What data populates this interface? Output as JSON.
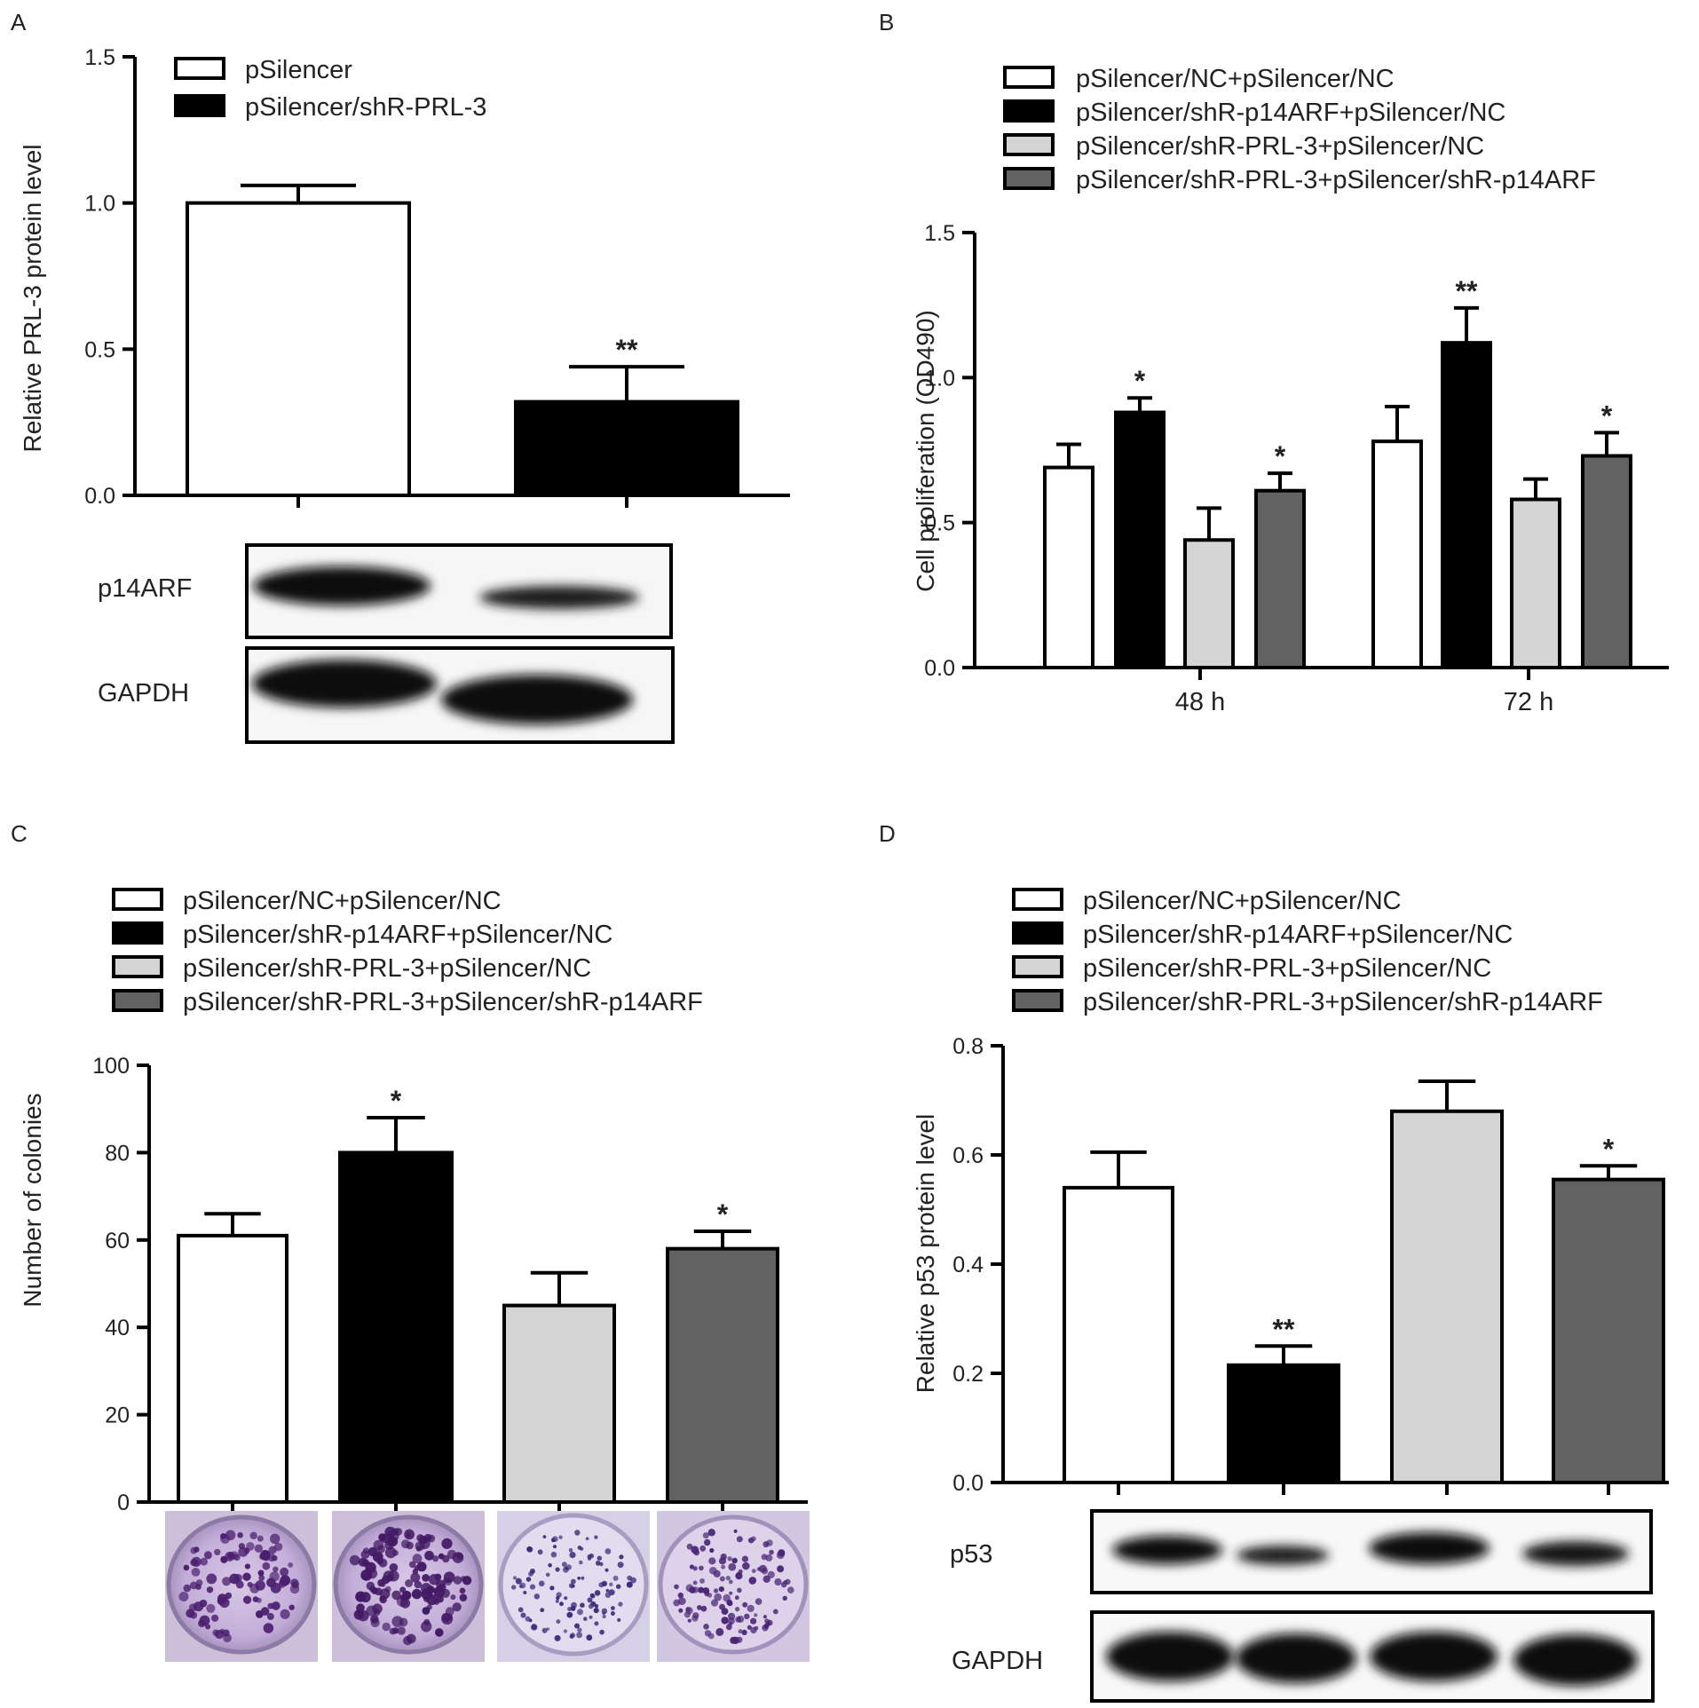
{
  "colors": {
    "white": "#ffffff",
    "black": "#000000",
    "light": "#d4d4d4",
    "dark": "#626262"
  },
  "chart_data": [
    {
      "panel": "A",
      "type": "bar",
      "ylabel": "Relative PRL-3 protein level",
      "ylim": [
        0,
        1.5
      ],
      "yticks": [
        "0.0",
        "0.5",
        "1.0",
        "1.5"
      ],
      "legend": [
        "pSilencer",
        "pSilencer/shR-PRL-3"
      ],
      "series": [
        {
          "name": "pSilencer",
          "values": [
            1.0
          ],
          "errors": [
            0.06
          ],
          "sig": "",
          "color": "#ffffff"
        },
        {
          "name": "pSilencer/shR-PRL-3",
          "values": [
            0.32
          ],
          "errors": [
            0.12
          ],
          "sig": "**",
          "color": "#000000"
        }
      ],
      "blots": [
        "p14ARF",
        "GAPDH"
      ]
    },
    {
      "panel": "B",
      "type": "bar",
      "ylabel": "Cell proliferation (OD490)",
      "ylim": [
        0,
        1.5
      ],
      "yticks": [
        "0.0",
        "0.5",
        "1.0",
        "1.5"
      ],
      "categories": [
        "48 h",
        "72 h"
      ],
      "legend": [
        "pSilencer/NC+pSilencer/NC",
        "pSilencer/shR-p14ARF+pSilencer/NC",
        "pSilencer/shR-PRL-3+pSilencer/NC",
        "pSilencer/shR-PRL-3+pSilencer/shR-p14ARF"
      ],
      "series": [
        {
          "name": "pSilencer/NC+pSilencer/NC",
          "values": [
            0.69,
            0.78
          ],
          "errors": [
            0.08,
            0.12
          ],
          "sig": [
            "",
            ""
          ],
          "color": "#ffffff"
        },
        {
          "name": "pSilencer/shR-p14ARF+pSilencer/NC",
          "values": [
            0.88,
            1.12
          ],
          "errors": [
            0.05,
            0.12
          ],
          "sig": [
            "*",
            "**"
          ],
          "color": "#000000"
        },
        {
          "name": "pSilencer/shR-PRL-3+pSilencer/NC",
          "values": [
            0.44,
            0.58
          ],
          "errors": [
            0.11,
            0.07
          ],
          "sig": [
            "",
            ""
          ],
          "color": "#d4d4d4"
        },
        {
          "name": "pSilencer/shR-PRL-3+pSilencer/shR-p14ARF",
          "values": [
            0.61,
            0.73
          ],
          "errors": [
            0.06,
            0.08
          ],
          "sig": [
            "*",
            "*"
          ],
          "color": "#626262"
        }
      ]
    },
    {
      "panel": "C",
      "type": "bar",
      "ylabel": "Number of colonies",
      "ylim": [
        0,
        100
      ],
      "yticks": [
        "0",
        "20",
        "40",
        "60",
        "80",
        "100"
      ],
      "legend": [
        "pSilencer/NC+pSilencer/NC",
        "pSilencer/shR-p14ARF+pSilencer/NC",
        "pSilencer/shR-PRL-3+pSilencer/NC",
        "pSilencer/shR-PRL-3+pSilencer/shR-p14ARF"
      ],
      "series": [
        {
          "name": "pSilencer/NC+pSilencer/NC",
          "values": [
            61
          ],
          "errors": [
            5
          ],
          "sig": "",
          "color": "#ffffff"
        },
        {
          "name": "pSilencer/shR-p14ARF+pSilencer/NC",
          "values": [
            80
          ],
          "errors": [
            8
          ],
          "sig": "*",
          "color": "#000000"
        },
        {
          "name": "pSilencer/shR-PRL-3+pSilencer/NC",
          "values": [
            45
          ],
          "errors": [
            7.5
          ],
          "sig": "",
          "color": "#d4d4d4"
        },
        {
          "name": "pSilencer/shR-PRL-3+pSilencer/shR-p14ARF",
          "values": [
            58
          ],
          "errors": [
            4
          ],
          "sig": "*",
          "color": "#626262"
        }
      ]
    },
    {
      "panel": "D",
      "type": "bar",
      "ylabel": "Relative p53 protein level",
      "ylim": [
        0,
        0.8
      ],
      "yticks": [
        "0.0",
        "0.2",
        "0.4",
        "0.6",
        "0.8"
      ],
      "legend": [
        "pSilencer/NC+pSilencer/NC",
        "pSilencer/shR-p14ARF+pSilencer/NC",
        "pSilencer/shR-PRL-3+pSilencer/NC",
        "pSilencer/shR-PRL-3+pSilencer/shR-p14ARF"
      ],
      "series": [
        {
          "name": "pSilencer/NC+pSilencer/NC",
          "values": [
            0.54
          ],
          "errors": [
            0.065
          ],
          "sig": "",
          "color": "#ffffff"
        },
        {
          "name": "pSilencer/shR-p14ARF+pSilencer/NC",
          "values": [
            0.215
          ],
          "errors": [
            0.035
          ],
          "sig": "**",
          "color": "#000000"
        },
        {
          "name": "pSilencer/shR-PRL-3+pSilencer/NC",
          "values": [
            0.68
          ],
          "errors": [
            0.055
          ],
          "sig": "",
          "color": "#d4d4d4"
        },
        {
          "name": "pSilencer/shR-PRL-3+pSilencer/shR-p14ARF",
          "values": [
            0.555
          ],
          "errors": [
            0.025
          ],
          "sig": "*",
          "color": "#626262"
        }
      ],
      "blots": [
        "p53",
        "GAPDH"
      ]
    }
  ]
}
